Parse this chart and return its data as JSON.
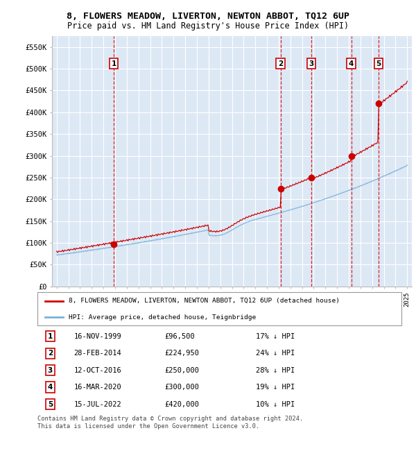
{
  "title": "8, FLOWERS MEADOW, LIVERTON, NEWTON ABBOT, TQ12 6UP",
  "subtitle": "Price paid vs. HM Land Registry's House Price Index (HPI)",
  "ylim": [
    0,
    575000
  ],
  "yticks": [
    0,
    50000,
    100000,
    150000,
    200000,
    250000,
    300000,
    350000,
    400000,
    450000,
    500000,
    550000
  ],
  "ytick_labels": [
    "£0",
    "£50K",
    "£100K",
    "£150K",
    "£200K",
    "£250K",
    "£300K",
    "£350K",
    "£400K",
    "£450K",
    "£500K",
    "£550K"
  ],
  "hpi_color": "#7ab0d8",
  "price_color": "#cc0000",
  "background_color": "#dde8f5",
  "grid_color": "#ffffff",
  "sale_dates_x": [
    1999.88,
    2014.16,
    2016.79,
    2020.21,
    2022.54
  ],
  "sale_prices_y": [
    96500,
    224950,
    250000,
    300000,
    420000
  ],
  "sale_labels": [
    "1",
    "2",
    "3",
    "4",
    "5"
  ],
  "legend_entries": [
    "8, FLOWERS MEADOW, LIVERTON, NEWTON ABBOT, TQ12 6UP (detached house)",
    "HPI: Average price, detached house, Teignbridge"
  ],
  "table_rows": [
    [
      "1",
      "16-NOV-1999",
      "£96,500",
      "17% ↓ HPI"
    ],
    [
      "2",
      "28-FEB-2014",
      "£224,950",
      "24% ↓ HPI"
    ],
    [
      "3",
      "12-OCT-2016",
      "£250,000",
      "28% ↓ HPI"
    ],
    [
      "4",
      "16-MAR-2020",
      "£300,000",
      "19% ↓ HPI"
    ],
    [
      "5",
      "15-JUL-2022",
      "£420,000",
      "10% ↓ HPI"
    ]
  ],
  "footnote": "Contains HM Land Registry data © Crown copyright and database right 2024.\nThis data is licensed under the Open Government Licence v3.0.",
  "title_fontsize": 9.5,
  "subtitle_fontsize": 8.5
}
